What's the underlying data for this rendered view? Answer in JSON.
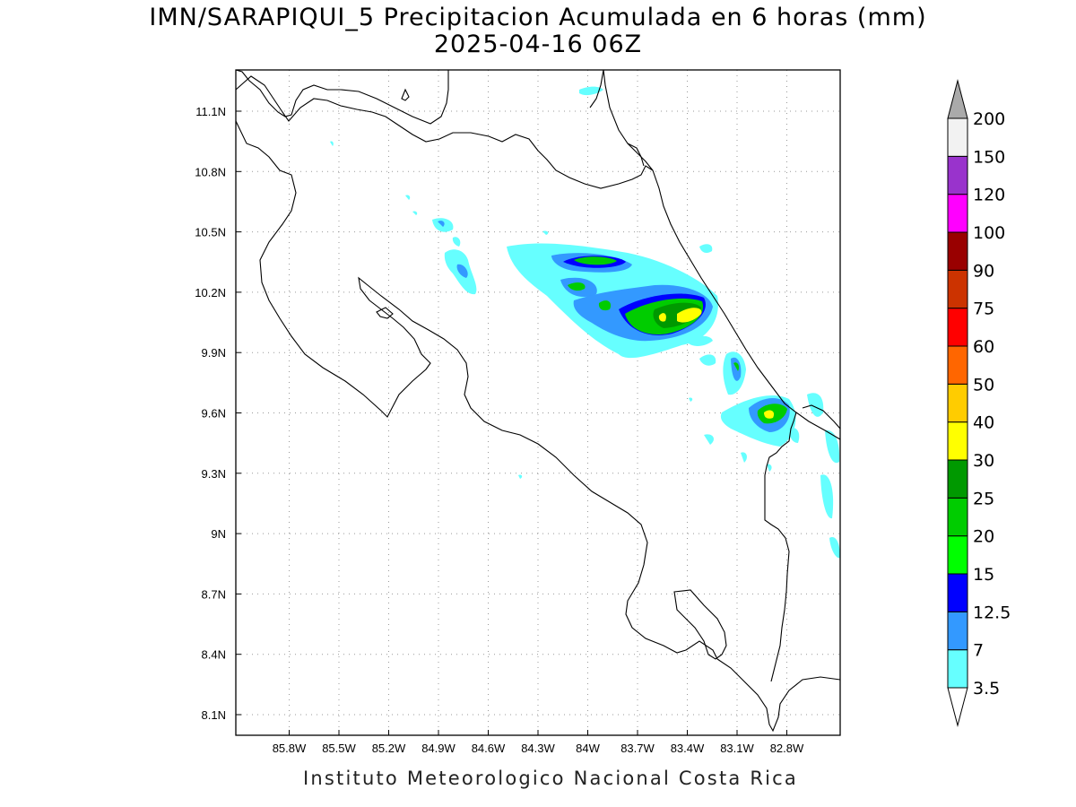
{
  "title": {
    "line1": "IMN/SARAPIQUI_5 Precipitacion Acumulada en 6 horas (mm)",
    "line2": "2025-04-16 06Z"
  },
  "footer": "Instituto Meteorologico Nacional Costa Rica",
  "map": {
    "lon_range": [
      -86.0,
      -82.6
    ],
    "lat_range": [
      8.0,
      11.3
    ],
    "x_ticks": [
      {
        "lon": -85.8,
        "label": "85.8W"
      },
      {
        "lon": -85.5,
        "label": "85.5W"
      },
      {
        "lon": -85.2,
        "label": "85.2W"
      },
      {
        "lon": -84.9,
        "label": "84.9W"
      },
      {
        "lon": -84.6,
        "label": "84.6W"
      },
      {
        "lon": -84.3,
        "label": "84.3W"
      },
      {
        "lon": -84.0,
        "label": "84W"
      },
      {
        "lon": -83.7,
        "label": "83.7W"
      },
      {
        "lon": -83.4,
        "label": "83.4W"
      },
      {
        "lon": -83.1,
        "label": "83.1W"
      },
      {
        "lon": -82.8,
        "label": "82.8W"
      }
    ],
    "y_ticks": [
      {
        "lat": 11.1,
        "label": "11.1N"
      },
      {
        "lat": 10.8,
        "label": "10.8N"
      },
      {
        "lat": 10.5,
        "label": "10.5N"
      },
      {
        "lat": 10.2,
        "label": "10.2N"
      },
      {
        "lat": 9.9,
        "label": "9.9N"
      },
      {
        "lat": 9.6,
        "label": "9.6N"
      },
      {
        "lat": 9.3,
        "label": "9.3N"
      },
      {
        "lat": 9.0,
        "label": "9N"
      },
      {
        "lat": 8.7,
        "label": "8.7N"
      },
      {
        "lat": 8.4,
        "label": "8.4N"
      },
      {
        "lat": 8.1,
        "label": "8.1N"
      }
    ],
    "grid": true
  },
  "colorbar": {
    "levels": [
      {
        "label": "3.5",
        "color": "#66ffff"
      },
      {
        "label": "7",
        "color": "#3399ff"
      },
      {
        "label": "12.5",
        "color": "#0000ff"
      },
      {
        "label": "15",
        "color": "#00ff00"
      },
      {
        "label": "20",
        "color": "#00cc00"
      },
      {
        "label": "25",
        "color": "#009900"
      },
      {
        "label": "30",
        "color": "#ffff00"
      },
      {
        "label": "40",
        "color": "#ffcc00"
      },
      {
        "label": "50",
        "color": "#ff6600"
      },
      {
        "label": "60",
        "color": "#ff0000"
      },
      {
        "label": "75",
        "color": "#cc3300"
      },
      {
        "label": "90",
        "color": "#990000"
      },
      {
        "label": "100",
        "color": "#ff00ff"
      },
      {
        "label": "120",
        "color": "#9933cc"
      },
      {
        "label": "150",
        "color": "#f2f2f2"
      },
      {
        "label": "200",
        "color": "#aaaaaa"
      }
    ]
  }
}
